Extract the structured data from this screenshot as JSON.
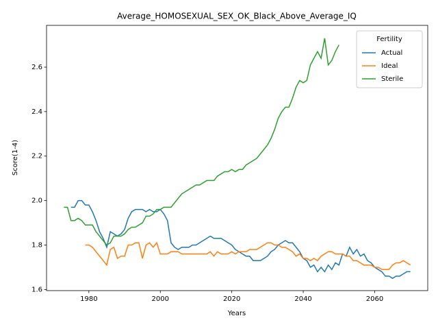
{
  "chart_data": {
    "type": "line",
    "title": "Average_HOMOSEXUAL_SEX_OK_Black_Above_Average_IQ",
    "x_label": "Years",
    "y_label": "Score(1-4)",
    "legend_title": "Fertility",
    "legend": "upper right",
    "xlim": [
      1968.15,
      2074.85
    ],
    "ylim": [
      1.595,
      2.788
    ],
    "xticks": [
      1980,
      2000,
      2020,
      2040,
      2060
    ],
    "yticks": [
      1.6,
      1.8,
      {
        "value": 2,
        "label": "2.0"
      },
      2.2,
      2.4,
      2.6
    ],
    "x": [
      1973,
      1974,
      1975,
      1976,
      1977,
      1978,
      1979,
      1980,
      1981,
      1982,
      1983,
      1984,
      1985,
      1986,
      1987,
      1988,
      1989,
      1990,
      1991,
      1992,
      1993,
      1994,
      1995,
      1996,
      1997,
      1998,
      1999,
      2000,
      2001,
      2002,
      2003,
      2004,
      2005,
      2006,
      2007,
      2008,
      2009,
      2010,
      2011,
      2012,
      2013,
      2014,
      2015,
      2016,
      2017,
      2018,
      2019,
      2020,
      2021,
      2022,
      2023,
      2024,
      2025,
      2026,
      2027,
      2028,
      2029,
      2030,
      2031,
      2032,
      2033,
      2034,
      2035,
      2036,
      2037,
      2038,
      2039,
      2040,
      2041,
      2042,
      2043,
      2044,
      2045,
      2046,
      2047,
      2048,
      2049,
      2050,
      2051,
      2052,
      2053,
      2054,
      2055,
      2056,
      2057,
      2058,
      2059,
      2060,
      2061,
      2062,
      2063,
      2064,
      2065,
      2066,
      2067,
      2068,
      2069,
      2070
    ],
    "series": [
      {
        "name": "Actual",
        "color": "#1f77b4",
        "values": [
          null,
          null,
          1.97,
          1.97,
          2.0,
          2.0,
          1.98,
          1.98,
          1.95,
          1.91,
          1.86,
          1.83,
          1.79,
          1.86,
          1.85,
          1.84,
          1.85,
          1.87,
          1.92,
          1.95,
          1.96,
          1.96,
          1.96,
          1.95,
          1.96,
          1.95,
          1.95,
          1.96,
          1.94,
          1.91,
          1.81,
          1.79,
          1.78,
          1.79,
          1.79,
          1.79,
          1.8,
          1.8,
          1.81,
          1.82,
          1.83,
          1.84,
          1.83,
          1.83,
          1.83,
          1.82,
          1.81,
          1.8,
          1.78,
          1.77,
          1.76,
          1.75,
          1.75,
          1.73,
          1.73,
          1.73,
          1.74,
          1.75,
          1.77,
          1.78,
          1.8,
          1.81,
          1.82,
          1.81,
          1.81,
          1.79,
          1.77,
          1.74,
          1.73,
          1.7,
          1.71,
          1.68,
          1.7,
          1.68,
          1.71,
          1.69,
          1.72,
          1.71,
          1.76,
          1.75,
          1.79,
          1.76,
          1.78,
          1.75,
          1.76,
          1.73,
          1.72,
          1.7,
          1.69,
          1.68,
          1.66,
          1.66,
          1.65,
          1.66,
          1.66,
          1.67,
          1.68,
          1.68
        ]
      },
      {
        "name": "Ideal",
        "color": "#ff7f0e",
        "values": [
          null,
          null,
          null,
          null,
          null,
          null,
          1.8,
          1.8,
          1.79,
          1.77,
          1.75,
          1.73,
          1.71,
          1.78,
          1.79,
          1.74,
          1.75,
          1.75,
          1.8,
          1.8,
          1.81,
          1.81,
          1.74,
          1.8,
          1.81,
          1.79,
          1.81,
          1.76,
          1.76,
          1.76,
          1.77,
          1.77,
          1.77,
          1.76,
          1.76,
          1.76,
          1.76,
          1.76,
          1.76,
          1.76,
          1.76,
          1.77,
          1.75,
          1.77,
          1.76,
          1.76,
          1.76,
          1.77,
          1.76,
          1.77,
          1.77,
          1.77,
          1.78,
          1.78,
          1.78,
          1.79,
          1.8,
          1.81,
          1.81,
          1.8,
          1.8,
          1.79,
          1.79,
          1.78,
          1.77,
          1.75,
          1.76,
          1.74,
          1.74,
          1.73,
          1.74,
          1.73,
          1.75,
          1.76,
          1.77,
          1.77,
          1.76,
          1.76,
          1.76,
          1.75,
          1.75,
          1.73,
          1.73,
          1.72,
          1.71,
          1.71,
          1.71,
          1.7,
          1.7,
          1.69,
          1.69,
          1.69,
          1.71,
          1.72,
          1.72,
          1.73,
          1.72,
          1.71
        ]
      },
      {
        "name": "Sterile",
        "color": "#2ca02c",
        "values": [
          1.97,
          1.97,
          1.91,
          1.91,
          1.92,
          1.91,
          1.89,
          1.89,
          1.89,
          1.86,
          1.84,
          1.82,
          1.8,
          1.81,
          1.84,
          1.84,
          1.84,
          1.85,
          1.87,
          1.88,
          1.88,
          1.89,
          1.9,
          1.93,
          1.93,
          1.94,
          1.96,
          1.96,
          1.97,
          1.97,
          1.97,
          1.99,
          2.01,
          2.03,
          2.04,
          2.05,
          2.06,
          2.07,
          2.07,
          2.08,
          2.09,
          2.09,
          2.09,
          2.11,
          2.12,
          2.13,
          2.13,
          2.14,
          2.13,
          2.14,
          2.14,
          2.16,
          2.17,
          2.18,
          2.19,
          2.21,
          2.23,
          2.25,
          2.28,
          2.32,
          2.37,
          2.4,
          2.42,
          2.42,
          2.46,
          2.51,
          2.54,
          2.53,
          2.54,
          2.61,
          2.64,
          2.67,
          2.64,
          2.73,
          2.61,
          2.63,
          2.67,
          2.7,
          null,
          null,
          null,
          null,
          null,
          null,
          null,
          null,
          null,
          null,
          null,
          null,
          null,
          null,
          null,
          null,
          null,
          null,
          null,
          null
        ]
      }
    ]
  }
}
